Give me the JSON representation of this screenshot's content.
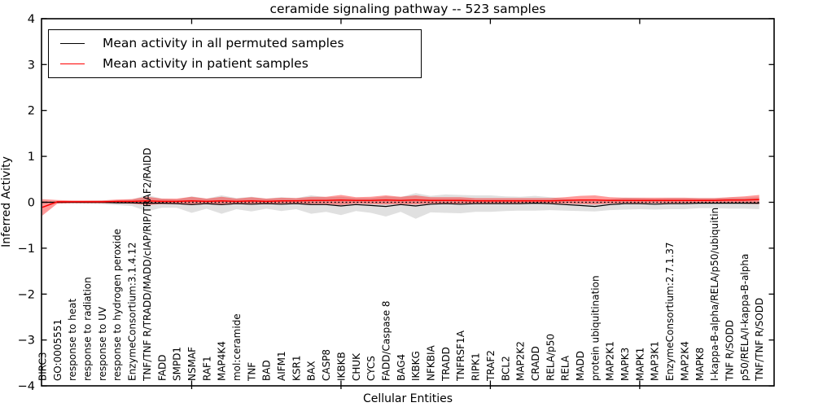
{
  "figure": {
    "background": "#ffffff"
  },
  "chart_data": {
    "type": "line",
    "title": "ceramide signaling pathway -- 523 samples",
    "xlabel": "Cellular Entities",
    "ylabel": "Inferred Activity",
    "ylim": [
      -4,
      4
    ],
    "yticks": [
      -4,
      -3,
      -2,
      -1,
      0,
      1,
      2,
      3,
      4
    ],
    "grid": false,
    "legend_position": "upper left",
    "zero_line": {
      "value": 0,
      "style": "dotted",
      "color": "#000000"
    },
    "xticks_at_category_indices": [
      10,
      20,
      30,
      40
    ],
    "legend": [
      {
        "label": "Mean activity in all permuted samples",
        "color": "#000000"
      },
      {
        "label": "Mean activity in patient samples",
        "color": "#ff0000"
      }
    ],
    "categories": [
      "BIRC3",
      "GO:0005551",
      "response to heat",
      "response to radiation",
      "response to UV",
      "response to hydrogen peroxide",
      "EnzymeConsortium:3.1.4.12",
      "TNF/TNF R/TRADD/MADD/cIAP/RIP/TRAF2/RAIDD",
      "FADD",
      "SMPD1",
      "NSMAF",
      "RAF1",
      "MAP4K4",
      "mol:ceramide",
      "TNF",
      "BAD",
      "AIFM1",
      "KSR1",
      "BAX",
      "CASP8",
      "IKBKB",
      "CHUK",
      "CYCS",
      "FADD/Caspase 8",
      "BAG4",
      "IKBKG",
      "NFKBIA",
      "TRADD",
      "TNFRSF1A",
      "RIPK1",
      "TRAF2",
      "BCL2",
      "MAP2K2",
      "CRADD",
      "RELA/p50",
      "RELA",
      "MADD",
      "protein ubiquitination",
      "MAP2K1",
      "MAPK3",
      "MAPK1",
      "MAP3K1",
      "EnzymeConsortium:2.7.1.37",
      "MAP2K4",
      "MAPK8",
      "I-kappa-B-alpha/RELA/p50/ubiquitin",
      "TNF R/SODD",
      "p50/RELA/I-kappa-B-alpha",
      "TNF/TNF R/SODD"
    ],
    "series": [
      {
        "name": "Mean activity in all permuted samples",
        "color": "#000000",
        "band_color": "#bbbbbb",
        "band_opacity": 0.45,
        "mean": [
          0,
          0,
          0,
          0,
          0,
          -0.01,
          -0.01,
          -0.02,
          -0.02,
          -0.03,
          -0.05,
          -0.03,
          -0.05,
          -0.03,
          -0.04,
          -0.03,
          -0.04,
          -0.03,
          -0.05,
          -0.05,
          -0.08,
          -0.05,
          -0.07,
          -0.09,
          -0.05,
          -0.08,
          -0.04,
          -0.03,
          -0.04,
          -0.03,
          -0.03,
          -0.03,
          -0.03,
          -0.02,
          -0.03,
          -0.05,
          -0.07,
          -0.09,
          -0.05,
          -0.03,
          -0.03,
          -0.04,
          -0.03,
          -0.03,
          -0.02,
          -0.02,
          -0.02,
          -0.02,
          -0.02
        ],
        "std": [
          0.02,
          0.02,
          0.02,
          0.03,
          0.04,
          0.05,
          0.07,
          0.18,
          0.1,
          0.09,
          0.18,
          0.11,
          0.2,
          0.12,
          0.16,
          0.11,
          0.15,
          0.12,
          0.2,
          0.16,
          0.2,
          0.14,
          0.16,
          0.22,
          0.16,
          0.28,
          0.18,
          0.2,
          0.2,
          0.18,
          0.18,
          0.16,
          0.15,
          0.16,
          0.14,
          0.13,
          0.12,
          0.11,
          0.12,
          0.13,
          0.12,
          0.12,
          0.12,
          0.12,
          0.11,
          0.11,
          0.12,
          0.12,
          0.13
        ]
      },
      {
        "name": "Mean activity in patient samples",
        "color": "#ff0000",
        "band_color": "#ff0000",
        "band_opacity": 0.4,
        "mean": [
          -0.11,
          0.01,
          0.01,
          0.01,
          0.01,
          0.02,
          0.02,
          0.03,
          0.02,
          0.02,
          0.03,
          0.02,
          0.03,
          0.02,
          0.03,
          0.02,
          0.03,
          0.03,
          0.04,
          0.04,
          0.05,
          0.04,
          0.04,
          0.05,
          0.04,
          0.05,
          0.04,
          0.04,
          0.04,
          0.03,
          0.03,
          0.03,
          0.03,
          0.03,
          0.03,
          0.04,
          0.05,
          0.05,
          0.04,
          0.04,
          0.04,
          0.04,
          0.04,
          0.04,
          0.04,
          0.04,
          0.05,
          0.05,
          0.06
        ],
        "std": [
          0.18,
          0.04,
          0.03,
          0.03,
          0.03,
          0.04,
          0.05,
          0.09,
          0.06,
          0.06,
          0.09,
          0.06,
          0.09,
          0.06,
          0.08,
          0.06,
          0.07,
          0.06,
          0.08,
          0.08,
          0.11,
          0.07,
          0.08,
          0.1,
          0.08,
          0.1,
          0.07,
          0.07,
          0.07,
          0.06,
          0.06,
          0.06,
          0.06,
          0.06,
          0.06,
          0.07,
          0.09,
          0.1,
          0.07,
          0.06,
          0.06,
          0.06,
          0.06,
          0.06,
          0.05,
          0.05,
          0.06,
          0.08,
          0.1
        ]
      }
    ]
  }
}
